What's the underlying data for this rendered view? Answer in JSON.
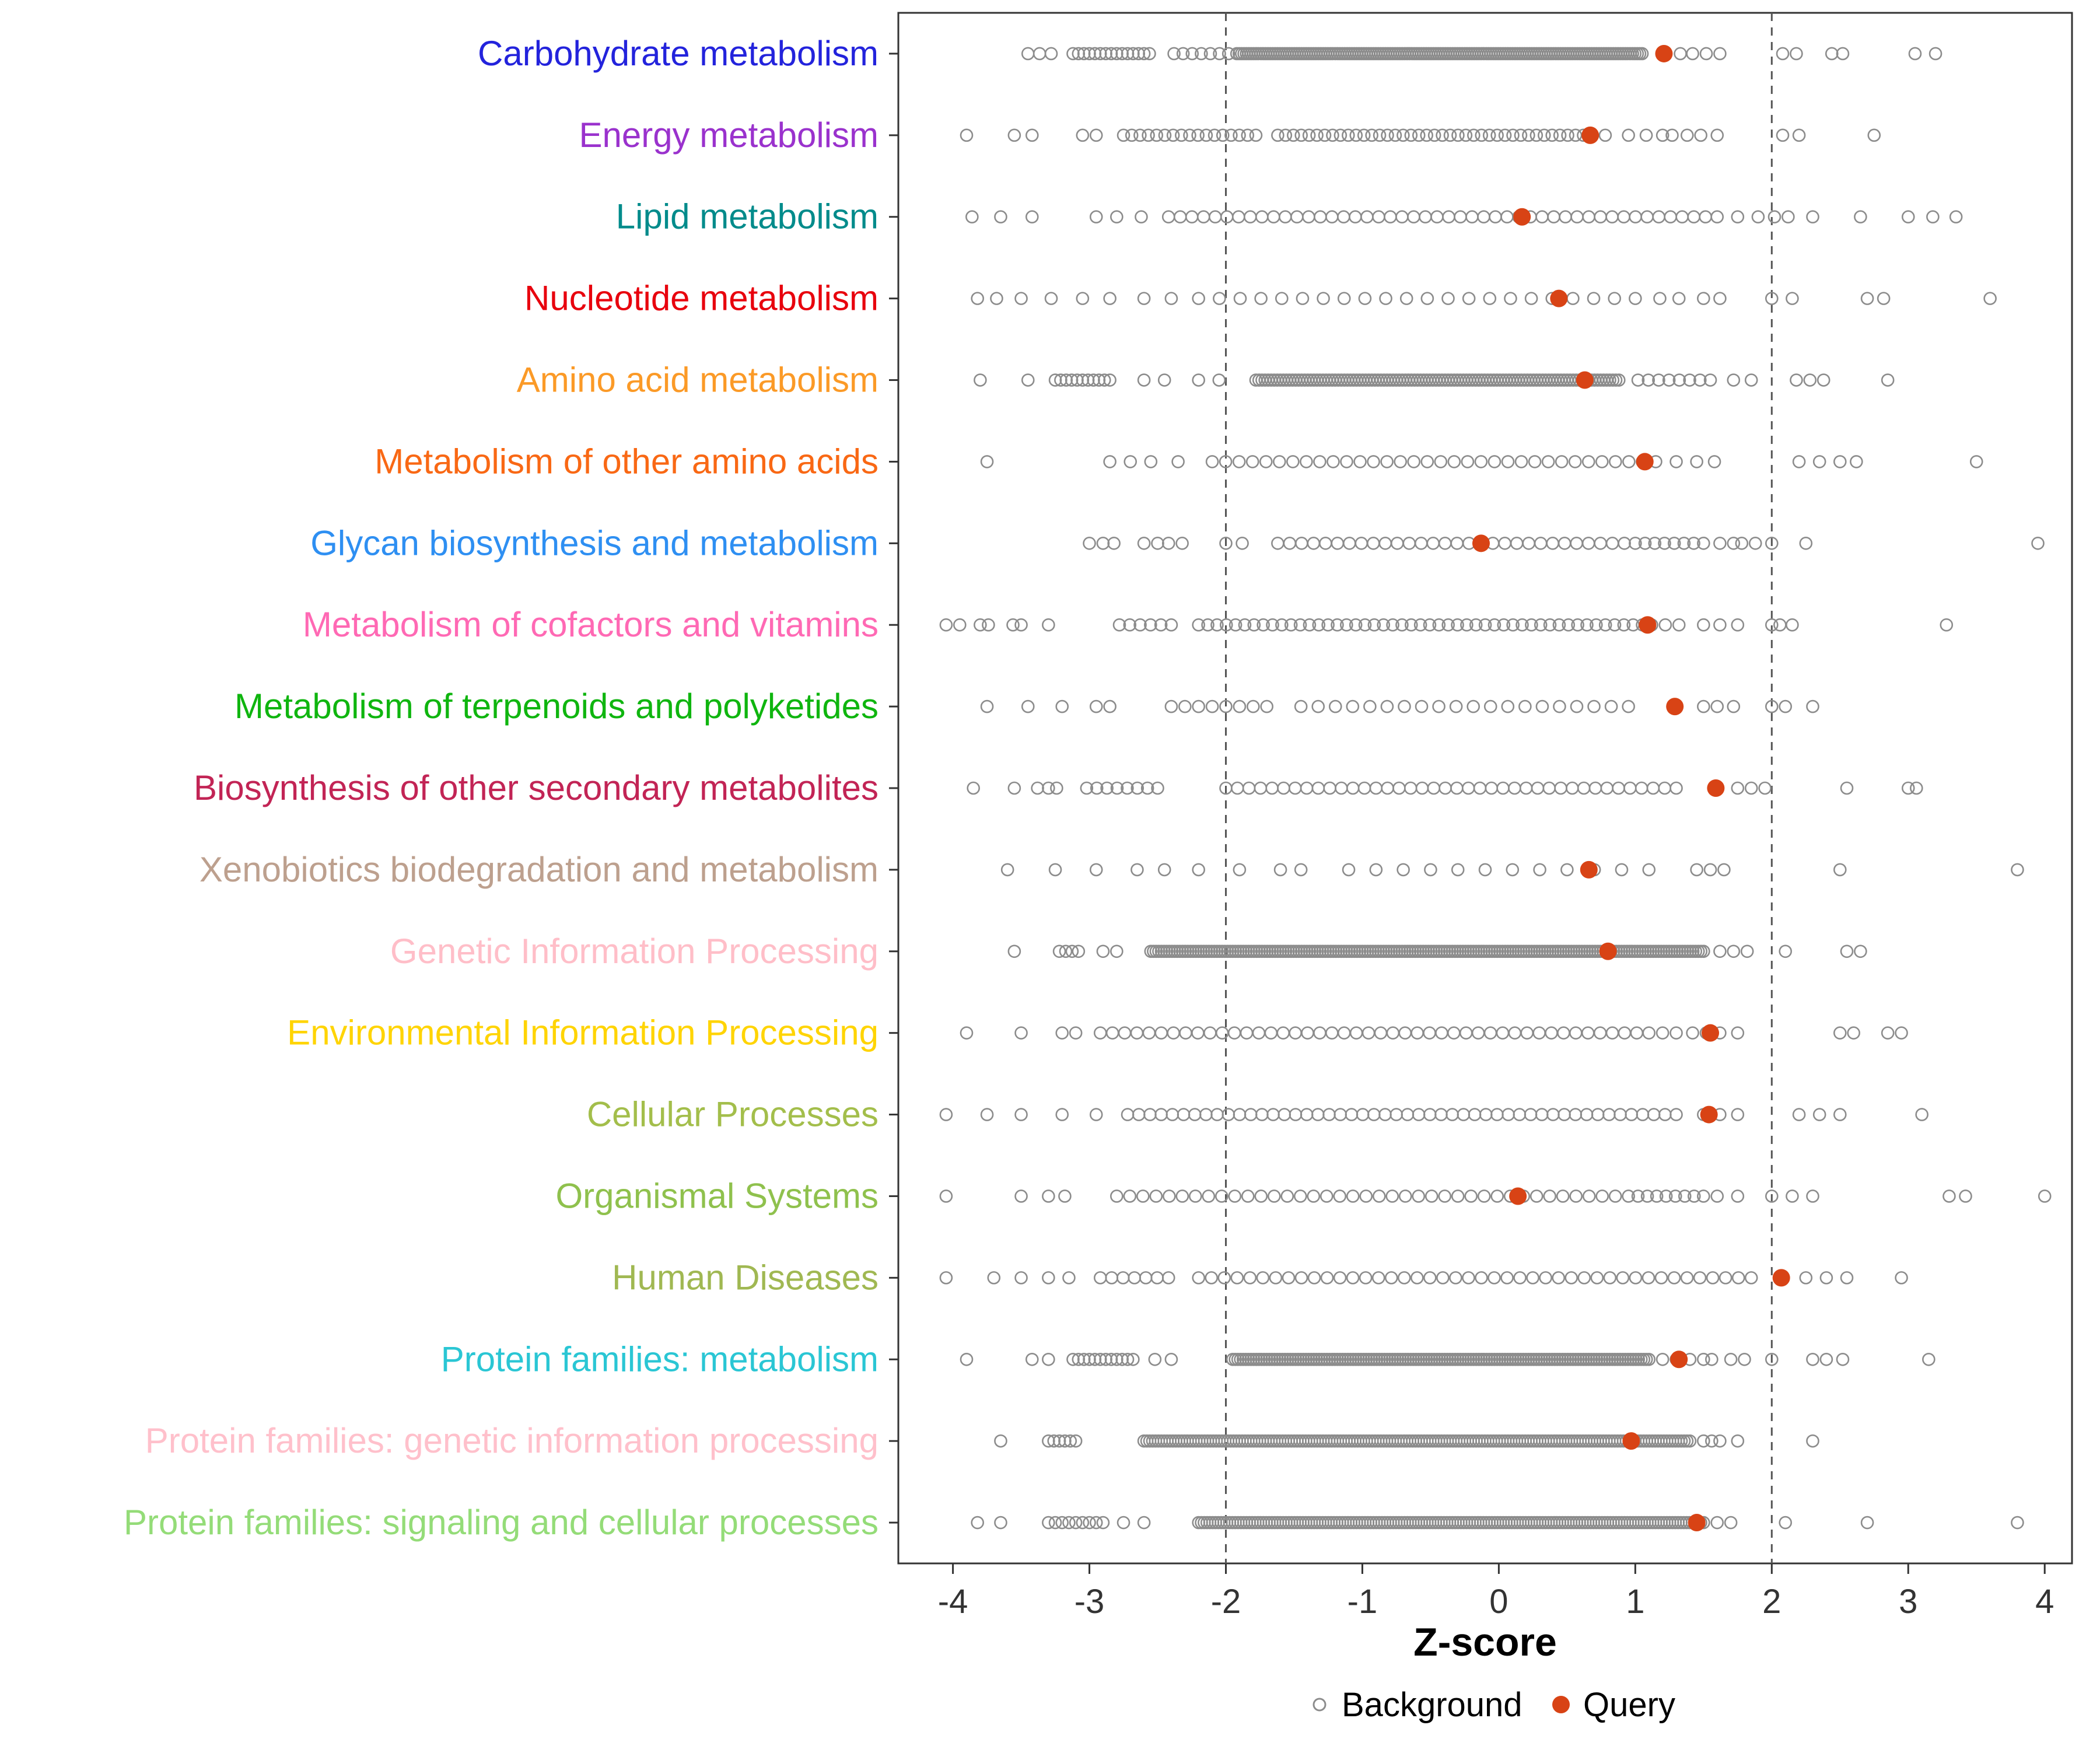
{
  "chart_data": {
    "type": "scatter",
    "subtype": "strip-plot",
    "title": "",
    "xlabel": "Z-score",
    "ylabel": "",
    "xlim": [
      -4.4,
      4.2
    ],
    "x_ticks": [
      -4,
      -3,
      -2,
      -1,
      0,
      1,
      2,
      3,
      4
    ],
    "reference_lines": [
      -2,
      2
    ],
    "grid": false,
    "legend_position": "bottom",
    "legend": {
      "background_label": "Background",
      "query_label": "Query"
    },
    "colors": {
      "background_stroke": "#8C8C8C",
      "query_fill": "#D84315",
      "reference_line": "#555555",
      "panel_border": "#333333",
      "axis_text": "#333333"
    },
    "categories": [
      {
        "label": "Carbohydrate metabolism",
        "color": "#2323DC",
        "query": 1.21,
        "background_runs": [
          [
            -3.45,
            -3.28,
            3
          ],
          [
            -3.12,
            -2.56,
            15
          ],
          [
            -2.38,
            -1.98,
            7
          ],
          [
            -1.92,
            1.05,
            170
          ]
        ],
        "background_points": [
          1.33,
          1.42,
          1.52,
          1.62,
          2.08,
          2.18,
          2.44,
          2.52,
          3.05,
          3.2
        ]
      },
      {
        "label": "Energy metabolism",
        "color": "#9A32CD",
        "query": 0.67,
        "background_runs": [
          [
            -2.75,
            -1.78,
            17
          ],
          [
            -1.62,
            0.62,
            40
          ]
        ],
        "background_points": [
          -3.9,
          -3.55,
          -3.42,
          -3.05,
          -2.95,
          0.78,
          0.95,
          1.08,
          1.2,
          1.27,
          1.38,
          1.48,
          1.6,
          2.08,
          2.2,
          2.75
        ]
      },
      {
        "label": "Lipid metabolism",
        "color": "#008B8B",
        "query": 0.17,
        "background_runs": [
          [
            -2.42,
            1.6,
            48
          ]
        ],
        "background_points": [
          -3.86,
          -3.65,
          -3.42,
          -2.95,
          -2.8,
          -2.62,
          1.75,
          1.9,
          2.02,
          2.12,
          2.3,
          2.65,
          3.0,
          3.18,
          3.35
        ]
      },
      {
        "label": "Nucleotide metabolism",
        "color": "#E8000D",
        "query": 0.44,
        "background_runs": [
          [
            -2.2,
            1.0,
            22
          ]
        ],
        "background_points": [
          -3.82,
          -3.68,
          -3.5,
          -3.28,
          -3.05,
          -2.85,
          -2.6,
          -2.4,
          1.18,
          1.32,
          1.5,
          1.62,
          2.0,
          2.15,
          2.7,
          2.82,
          3.6
        ]
      },
      {
        "label": "Amino acid metabolism",
        "color": "#FB9A27",
        "query": 0.63,
        "background_runs": [
          [
            -3.25,
            -2.85,
            11
          ],
          [
            -1.78,
            0.88,
            120
          ],
          [
            1.02,
            1.55,
            8
          ]
        ],
        "background_points": [
          -3.8,
          -3.45,
          -2.6,
          -2.45,
          -2.2,
          -2.05,
          1.72,
          1.85,
          2.18,
          2.28,
          2.38,
          2.85
        ]
      },
      {
        "label": "Metabolism of other amino acids",
        "color": "#F96814",
        "query": 1.07,
        "background_runs": [
          [
            -2.1,
            1.15,
            34
          ]
        ],
        "background_points": [
          -3.75,
          -2.85,
          -2.7,
          -2.55,
          -2.35,
          1.3,
          1.45,
          1.58,
          2.2,
          2.35,
          2.5,
          2.62,
          3.5
        ]
      },
      {
        "label": "Glycan biosynthesis and metabolism",
        "color": "#2E8FF2",
        "query": -0.13,
        "background_runs": [
          [
            -1.62,
            0.92,
            30
          ],
          [
            1.0,
            1.5,
            8
          ]
        ],
        "background_points": [
          -3.0,
          -2.9,
          -2.82,
          -2.6,
          -2.5,
          -2.42,
          -2.32,
          -2.0,
          -1.88,
          1.62,
          1.72,
          1.78,
          1.88,
          2.0,
          2.25,
          3.95
        ]
      },
      {
        "label": "Metabolism of cofactors and vitamins",
        "color": "#FF69B4",
        "query": 1.09,
        "background_runs": [
          [
            -2.78,
            -2.4,
            6
          ],
          [
            -2.2,
            1.12,
            50
          ]
        ],
        "background_points": [
          -4.05,
          -3.95,
          -3.8,
          -3.74,
          -3.56,
          -3.5,
          -3.3,
          1.22,
          1.32,
          1.5,
          1.62,
          1.75,
          2.0,
          2.06,
          2.15,
          3.28
        ]
      },
      {
        "label": "Metabolism of terpenoids and polyketides",
        "color": "#0FB50F",
        "query": 1.29,
        "background_runs": [
          [
            -2.4,
            -1.7,
            8
          ],
          [
            -1.45,
            0.95,
            20
          ]
        ],
        "background_points": [
          -3.75,
          -3.45,
          -3.2,
          -2.95,
          -2.85,
          1.5,
          1.6,
          1.72,
          2.0,
          2.1,
          2.3
        ]
      },
      {
        "label": "Biosynthesis of other secondary metabolites",
        "color": "#C22455",
        "query": 1.59,
        "background_runs": [
          [
            -3.02,
            -2.5,
            8
          ],
          [
            -2.0,
            1.3,
            40
          ]
        ],
        "background_points": [
          -3.85,
          -3.55,
          -3.38,
          -3.3,
          -3.24,
          1.75,
          1.85,
          1.95,
          2.55,
          3.0,
          3.06
        ]
      },
      {
        "label": "Xenobiotics biodegradation and metabolism",
        "color": "#BDA08E",
        "query": 0.66,
        "background_runs": [
          [
            -1.1,
            1.1,
            12
          ]
        ],
        "background_points": [
          -3.6,
          -3.25,
          -2.95,
          -2.65,
          -2.45,
          -2.2,
          -1.9,
          -1.6,
          -1.45,
          1.45,
          1.55,
          1.65,
          2.5,
          3.8
        ]
      },
      {
        "label": "Genetic Information Processing",
        "color": "#FFBEC8",
        "query": 0.8,
        "background_runs": [
          [
            -3.22,
            -3.08,
            4
          ],
          [
            -2.55,
            1.5,
            210
          ]
        ],
        "background_points": [
          -3.55,
          -2.9,
          -2.8,
          1.62,
          1.72,
          1.82,
          2.1,
          2.55,
          2.65
        ]
      },
      {
        "label": "Environmental Information Processing",
        "color": "#FFD403",
        "query": 1.55,
        "background_runs": [
          [
            -2.92,
            1.1,
            46
          ]
        ],
        "background_points": [
          -3.9,
          -3.5,
          -3.2,
          -3.1,
          1.2,
          1.3,
          1.42,
          1.52,
          1.62,
          1.75,
          2.5,
          2.6,
          2.85,
          2.95
        ]
      },
      {
        "label": "Cellular Processes",
        "color": "#A3BE4B",
        "query": 1.54,
        "background_runs": [
          [
            -2.72,
            1.3,
            50
          ]
        ],
        "background_points": [
          -4.05,
          -3.75,
          -3.5,
          -3.2,
          -2.95,
          1.5,
          1.62,
          1.75,
          2.2,
          2.35,
          2.5,
          3.1
        ]
      },
      {
        "label": "Organismal Systems",
        "color": "#8FC14D",
        "query": 0.14,
        "background_runs": [
          [
            -2.8,
            0.95,
            40
          ],
          [
            1.02,
            1.5,
            8
          ]
        ],
        "background_points": [
          -4.05,
          -3.5,
          -3.3,
          -3.18,
          1.6,
          1.75,
          2.0,
          2.15,
          2.3,
          3.3,
          3.42,
          4.0
        ]
      },
      {
        "label": "Human Diseases",
        "color": "#A0B852",
        "query": 2.07,
        "background_runs": [
          [
            -2.92,
            -2.42,
            7
          ],
          [
            -2.2,
            1.85,
            44
          ]
        ],
        "background_points": [
          -4.05,
          -3.7,
          -3.5,
          -3.3,
          -3.15,
          2.25,
          2.4,
          2.55,
          2.95
        ]
      },
      {
        "label": "Protein families: metabolism",
        "color": "#2AC6D4",
        "query": 1.32,
        "background_runs": [
          [
            -3.12,
            -2.68,
            12
          ],
          [
            -1.95,
            1.1,
            160
          ]
        ],
        "background_points": [
          -3.9,
          -3.42,
          -3.3,
          -2.52,
          -2.4,
          1.2,
          1.3,
          1.4,
          1.5,
          1.56,
          1.7,
          1.8,
          2.0,
          2.3,
          2.4,
          2.52,
          3.15
        ]
      },
      {
        "label": "Protein families: genetic information processing",
        "color": "#FFC0CB",
        "query": 0.97,
        "background_runs": [
          [
            -3.3,
            -3.1,
            6
          ],
          [
            -2.6,
            1.4,
            190
          ]
        ],
        "background_points": [
          -3.65,
          1.5,
          1.56,
          1.62,
          1.75,
          2.3
        ]
      },
      {
        "label": "Protein families: signaling and cellular processes",
        "color": "#94DC78",
        "query": 1.45,
        "background_runs": [
          [
            -3.3,
            -2.9,
            9
          ],
          [
            -2.2,
            1.5,
            180
          ]
        ],
        "background_points": [
          -3.82,
          -3.65,
          -2.75,
          -2.6,
          1.6,
          1.7,
          2.1,
          2.7,
          3.8
        ]
      }
    ]
  }
}
